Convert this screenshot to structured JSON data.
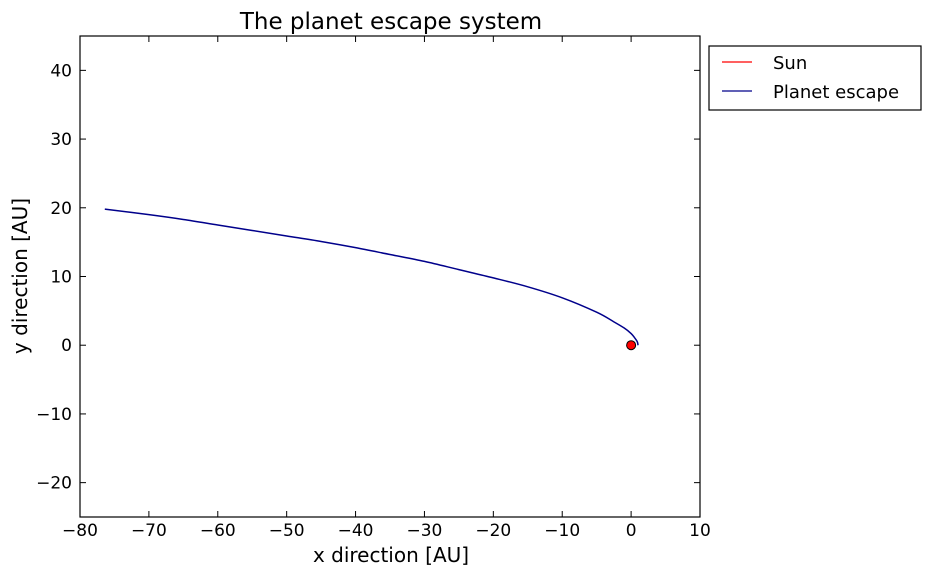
{
  "chart_data": {
    "type": "line",
    "title": "The planet escape system",
    "xlabel": "x direction [AU]",
    "ylabel": "y direction [AU]",
    "xlim": [
      -80,
      10
    ],
    "ylim": [
      -25,
      45
    ],
    "xticks": [
      -80,
      -70,
      -60,
      -50,
      -40,
      -30,
      -20,
      -10,
      0,
      10
    ],
    "yticks": [
      -20,
      -10,
      0,
      10,
      20,
      30,
      40
    ],
    "xtick_labels": [
      "−80",
      "−70",
      "−60",
      "−50",
      "−40",
      "−30",
      "−20",
      "−10",
      "0",
      "10"
    ],
    "ytick_labels": [
      "−20",
      "−10",
      "0",
      "10",
      "20",
      "30",
      "40"
    ],
    "grid": false,
    "legend_position": "outside top-right",
    "series": [
      {
        "name": "Sun",
        "color": "#ff0000",
        "marker": "circle",
        "x": [
          0
        ],
        "y": [
          0
        ]
      },
      {
        "name": "Planet escape",
        "color": "#00008b",
        "x": [
          1.0,
          0.9,
          0.5,
          0.0,
          -1.0,
          -2.5,
          -5.0,
          -10.0,
          -15.0,
          -20.0,
          -25.0,
          -30.0,
          -35.0,
          -40.0,
          -45.0,
          -50.0,
          -55.0,
          -60.0,
          -65.0,
          -70.0,
          -76.4
        ],
        "y": [
          0.0,
          0.5,
          1.1,
          1.7,
          2.5,
          3.4,
          4.8,
          6.9,
          8.5,
          9.8,
          11.0,
          12.2,
          13.2,
          14.2,
          15.1,
          15.9,
          16.7,
          17.5,
          18.3,
          19.0,
          19.8
        ]
      }
    ]
  }
}
